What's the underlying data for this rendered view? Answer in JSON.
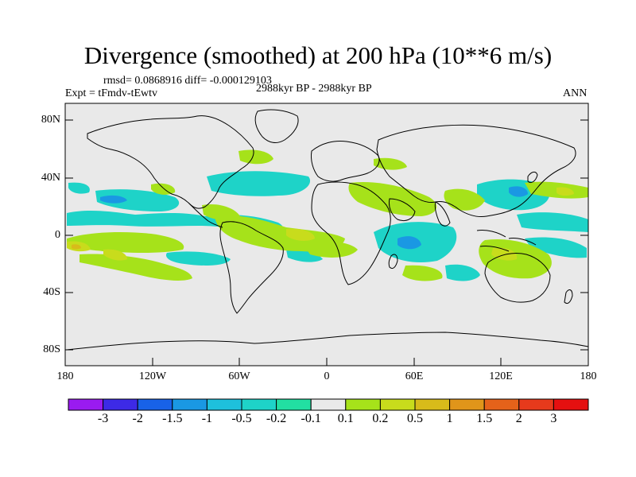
{
  "title": "Divergence (smoothed) at 200 hPa (10**6 m/s)",
  "stats": "rmsd= 0.0868916 diff= -0.000129103",
  "experiment": "Expt = tFmdv-tEwtv",
  "period": "2988kyr BP - 2988kyr BP",
  "season": "ANN",
  "axes": {
    "lat_labels": [
      "80N",
      "40N",
      "0",
      "40S",
      "80S"
    ],
    "lon_labels": [
      "180",
      "120W",
      "60W",
      "0",
      "60E",
      "120E",
      "180"
    ]
  },
  "colorbar": {
    "labels": [
      "-3",
      "-2",
      "-1.5",
      "-1",
      "-0.5",
      "-0.2",
      "-0.1",
      "0.1",
      "0.2",
      "0.5",
      "1",
      "1.5",
      "2",
      "3"
    ],
    "colors": [
      "#9a1bf0",
      "#3d2ae6",
      "#1862e8",
      "#1a98e3",
      "#1ec0dc",
      "#1ed3c8",
      "#22dfa2",
      "#e9e9e9",
      "#a6e21a",
      "#c8dc1c",
      "#d8bb1a",
      "#e0951a",
      "#e5621a",
      "#e63a1c",
      "#e51010"
    ]
  },
  "colors": {
    "background": "#e9e9e9",
    "coast": "#000000"
  }
}
